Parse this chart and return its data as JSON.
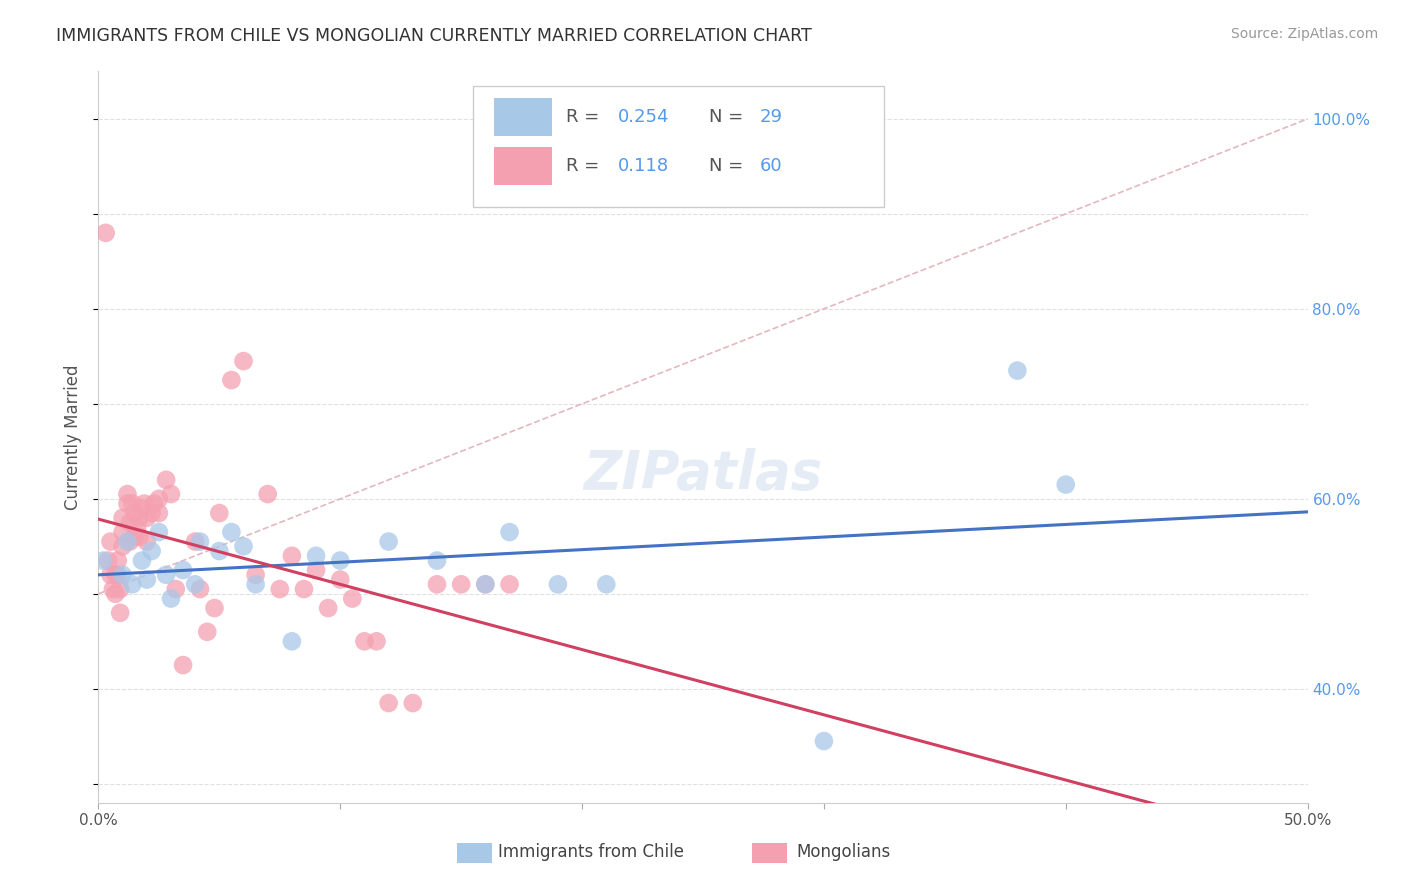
{
  "title": "IMMIGRANTS FROM CHILE VS MONGOLIAN CURRENTLY MARRIED CORRELATION CHART",
  "source": "Source: ZipAtlas.com",
  "ylabel": "Currently Married",
  "xlim": [
    0.0,
    0.5
  ],
  "ylim": [
    0.28,
    1.05
  ],
  "y_ticks": [
    0.4,
    0.6,
    0.8,
    1.0
  ],
  "y_tick_labels": [
    "40.0%",
    "60.0%",
    "80.0%",
    "100.0%"
  ],
  "chile_color": "#a8c8e8",
  "mongolia_color": "#f4a0b0",
  "chile_line_color": "#4472c4",
  "mongolia_line_color": "#d04060",
  "diagonal_color": "#e0b0b8",
  "background_color": "#ffffff",
  "grid_color": "#e0e0e0",
  "chile_x": [
    0.002,
    0.01,
    0.012,
    0.014,
    0.018,
    0.02,
    0.022,
    0.025,
    0.028,
    0.03,
    0.035,
    0.04,
    0.042,
    0.05,
    0.055,
    0.06,
    0.065,
    0.08,
    0.09,
    0.1,
    0.12,
    0.14,
    0.16,
    0.17,
    0.19,
    0.21,
    0.3,
    0.38,
    0.4
  ],
  "chile_y": [
    0.535,
    0.52,
    0.555,
    0.51,
    0.535,
    0.515,
    0.545,
    0.565,
    0.52,
    0.495,
    0.525,
    0.51,
    0.555,
    0.545,
    0.565,
    0.55,
    0.51,
    0.45,
    0.54,
    0.535,
    0.555,
    0.535,
    0.51,
    0.565,
    0.51,
    0.51,
    0.345,
    0.735,
    0.615
  ],
  "mongolia_x": [
    0.003,
    0.004,
    0.005,
    0.005,
    0.006,
    0.007,
    0.007,
    0.008,
    0.008,
    0.009,
    0.009,
    0.01,
    0.01,
    0.01,
    0.012,
    0.012,
    0.013,
    0.013,
    0.014,
    0.015,
    0.015,
    0.016,
    0.017,
    0.017,
    0.018,
    0.019,
    0.02,
    0.02,
    0.022,
    0.023,
    0.025,
    0.025,
    0.028,
    0.03,
    0.032,
    0.035,
    0.04,
    0.042,
    0.045,
    0.048,
    0.05,
    0.055,
    0.06,
    0.065,
    0.07,
    0.075,
    0.08,
    0.085,
    0.09,
    0.095,
    0.1,
    0.105,
    0.11,
    0.115,
    0.12,
    0.13,
    0.14,
    0.15,
    0.16,
    0.17
  ],
  "mongolia_y": [
    0.88,
    0.535,
    0.52,
    0.555,
    0.505,
    0.5,
    0.52,
    0.535,
    0.52,
    0.505,
    0.48,
    0.565,
    0.55,
    0.58,
    0.595,
    0.605,
    0.575,
    0.555,
    0.595,
    0.56,
    0.585,
    0.57,
    0.56,
    0.58,
    0.59,
    0.595,
    0.555,
    0.58,
    0.585,
    0.595,
    0.585,
    0.6,
    0.62,
    0.605,
    0.505,
    0.425,
    0.555,
    0.505,
    0.46,
    0.485,
    0.585,
    0.725,
    0.745,
    0.52,
    0.605,
    0.505,
    0.54,
    0.505,
    0.525,
    0.485,
    0.515,
    0.495,
    0.45,
    0.45,
    0.385,
    0.385,
    0.51,
    0.51,
    0.51,
    0.51
  ]
}
